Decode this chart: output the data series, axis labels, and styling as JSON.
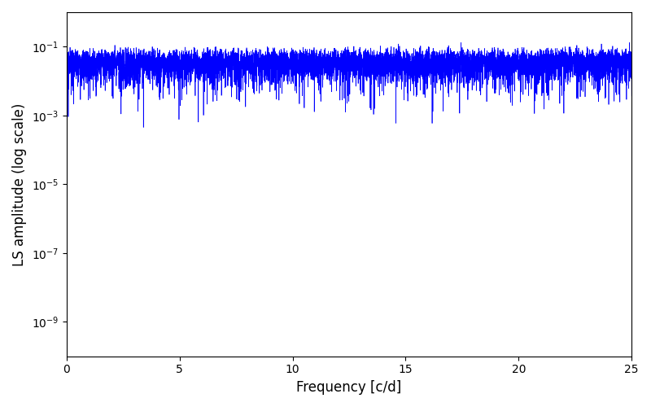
{
  "xlabel": "Frequency [c/d]",
  "ylabel": "LS amplitude (log scale)",
  "line_color": "#0000ff",
  "xlim": [
    0,
    25
  ],
  "ylim": [
    1e-10,
    1.0
  ],
  "background_color": "#ffffff",
  "figsize": [
    8.0,
    5.0
  ],
  "dpi": 100,
  "seed": 12345,
  "freq_max": 25.0,
  "n_freqs": 8000
}
